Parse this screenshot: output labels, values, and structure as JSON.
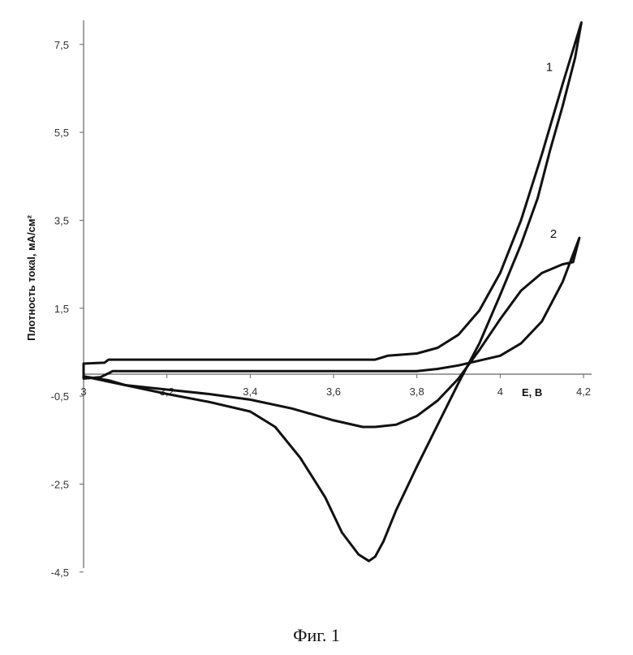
{
  "chart_data": {
    "type": "line",
    "ylabel": "Плотность токаl, мА/см²",
    "xlabel": "E, В",
    "xlim": [
      3,
      4.2
    ],
    "ylim": [
      -4.5,
      8
    ],
    "x_ticks": [
      {
        "value": 3,
        "label": "3"
      },
      {
        "value": 3.2,
        "label": "3,2"
      },
      {
        "value": 3.4,
        "label": "3,4"
      },
      {
        "value": 3.6,
        "label": "3,6"
      },
      {
        "value": 3.8,
        "label": "3,8"
      },
      {
        "value": 4,
        "label": "4"
      },
      {
        "value": 4.2,
        "label": "4,2"
      }
    ],
    "y_ticks": [
      {
        "value": 7.5,
        "label": "7,5"
      },
      {
        "value": 5.5,
        "label": "5,5"
      },
      {
        "value": 3.5,
        "label": "3,5"
      },
      {
        "value": 1.5,
        "label": "1,5"
      },
      {
        "value": -0.5,
        "label": "-0,5"
      },
      {
        "value": -2.5,
        "label": "-2,5"
      },
      {
        "value": -4.5,
        "label": "-4,5"
      }
    ],
    "grid": false,
    "legend": "none",
    "curve_color": "#111111",
    "series": [
      {
        "label": "1",
        "label_at": [
          4.11,
          6.9
        ],
        "points": [
          [
            3.0,
            0.24
          ],
          [
            3.05,
            0.26
          ],
          [
            3.06,
            0.33
          ],
          [
            3.7,
            0.33
          ],
          [
            3.73,
            0.42
          ],
          [
            3.8,
            0.47
          ],
          [
            3.85,
            0.6
          ],
          [
            3.9,
            0.9
          ],
          [
            3.95,
            1.45
          ],
          [
            4.0,
            2.3
          ],
          [
            4.05,
            3.5
          ],
          [
            4.1,
            5.0
          ],
          [
            4.15,
            6.6
          ],
          [
            4.195,
            8.0
          ],
          [
            4.18,
            7.2
          ],
          [
            4.15,
            6.1
          ],
          [
            4.12,
            5.1
          ],
          [
            4.09,
            4.0
          ],
          [
            4.05,
            2.95
          ],
          [
            4.0,
            1.8
          ],
          [
            3.95,
            0.7
          ],
          [
            3.9,
            -0.2
          ],
          [
            3.85,
            -1.15
          ],
          [
            3.8,
            -2.1
          ],
          [
            3.75,
            -3.1
          ],
          [
            3.72,
            -3.8
          ],
          [
            3.7,
            -4.15
          ],
          [
            3.685,
            -4.25
          ],
          [
            3.66,
            -4.1
          ],
          [
            3.62,
            -3.6
          ],
          [
            3.58,
            -2.8
          ],
          [
            3.52,
            -1.9
          ],
          [
            3.46,
            -1.2
          ],
          [
            3.4,
            -0.85
          ],
          [
            3.3,
            -0.63
          ],
          [
            3.2,
            -0.45
          ],
          [
            3.1,
            -0.25
          ],
          [
            3.06,
            -0.14
          ],
          [
            3.0,
            -0.05
          ]
        ]
      },
      {
        "label": "2",
        "label_at": [
          4.12,
          3.1
        ],
        "points": [
          [
            3.0,
            -0.1
          ],
          [
            3.04,
            -0.07
          ],
          [
            3.06,
            0.02
          ],
          [
            3.07,
            0.07
          ],
          [
            3.8,
            0.07
          ],
          [
            3.85,
            0.12
          ],
          [
            3.9,
            0.2
          ],
          [
            4.0,
            0.42
          ],
          [
            4.05,
            0.7
          ],
          [
            4.1,
            1.2
          ],
          [
            4.15,
            2.1
          ],
          [
            4.19,
            3.1
          ],
          [
            4.175,
            2.55
          ],
          [
            4.15,
            2.5
          ],
          [
            4.1,
            2.3
          ],
          [
            4.05,
            1.9
          ],
          [
            4.0,
            1.25
          ],
          [
            3.95,
            0.55
          ],
          [
            3.9,
            -0.1
          ],
          [
            3.85,
            -0.6
          ],
          [
            3.8,
            -0.95
          ],
          [
            3.75,
            -1.15
          ],
          [
            3.7,
            -1.2
          ],
          [
            3.67,
            -1.2
          ],
          [
            3.6,
            -1.05
          ],
          [
            3.5,
            -0.78
          ],
          [
            3.4,
            -0.58
          ],
          [
            3.3,
            -0.45
          ],
          [
            3.2,
            -0.35
          ],
          [
            3.1,
            -0.25
          ],
          [
            3.05,
            -0.15
          ],
          [
            3.0,
            -0.05
          ]
        ]
      }
    ]
  },
  "caption": "Фиг. 1"
}
